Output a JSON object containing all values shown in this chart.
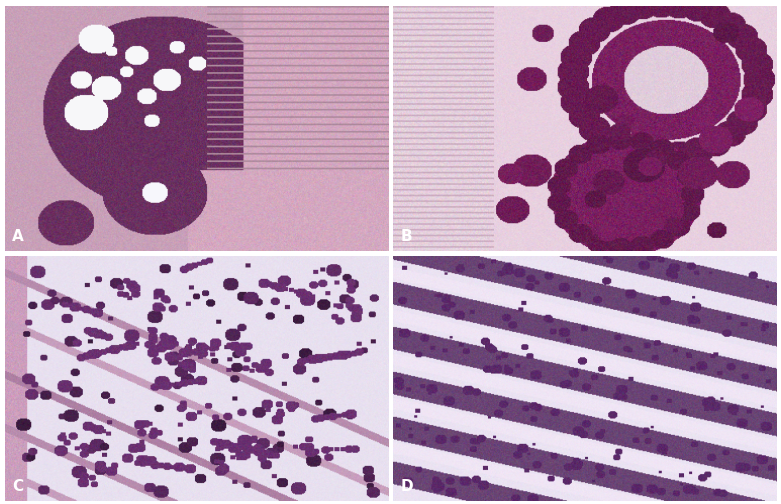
{
  "figure_width": 7.81,
  "figure_height": 5.04,
  "dpi": 100,
  "background_color": "#ffffff",
  "labels": [
    "A",
    "B",
    "C",
    "D"
  ],
  "label_color": "#ffffff",
  "label_fontsize": 11,
  "label_fontweight": "bold",
  "panels": [
    {
      "id": "A",
      "bg_color": "#c8a0b8",
      "cell_color": "#6a3060",
      "stroma_color": "#d4a8c0"
    },
    {
      "id": "B",
      "bg_color": "#d4b0c8",
      "cell_color": "#7a2060",
      "stroma_color": "#e8d0e0"
    },
    {
      "id": "C",
      "bg_color": "#dcc0d4",
      "cell_color": "#6a3070",
      "stroma_color": "#e8dce8"
    },
    {
      "id": "D",
      "bg_color": "#dcc4d8",
      "cell_color": "#5a2868",
      "stroma_color": "#ecdce8"
    }
  ]
}
